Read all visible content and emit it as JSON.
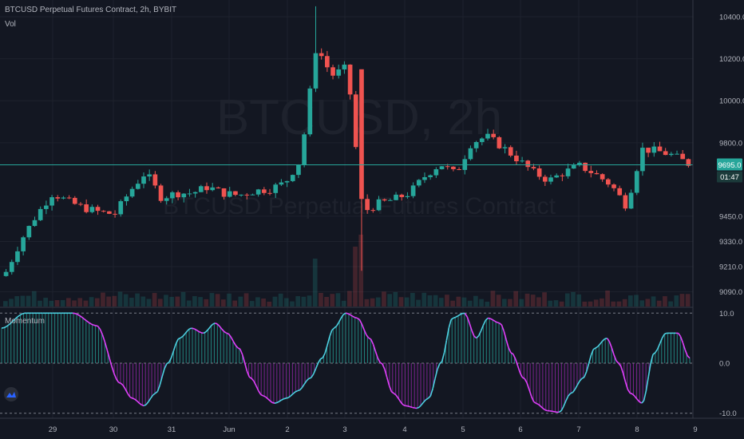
{
  "header": {
    "title": "BTCUSD Perpetual Futures Contract, 2h, BYBIT",
    "vol_label": "Vol",
    "momentum_label": "Momentum"
  },
  "watermark": {
    "symbol": "BTCUSD, 2h",
    "description": "BTCUSD Perpetual Futures Contract"
  },
  "price_axis": {
    "ticks": [
      "10400.0",
      "10200.0",
      "10000.0",
      "9800.0",
      "9695.0",
      "9450.0",
      "9330.0",
      "9210.0",
      "9090.0"
    ],
    "last_price": "9695.0",
    "countdown": "01:47"
  },
  "momentum_axis": {
    "ticks": [
      "10.0",
      "0.0",
      "-10.0"
    ]
  },
  "time_axis": {
    "labels": [
      "29",
      "30",
      "31",
      "Jun",
      "2",
      "3",
      "4",
      "5",
      "6",
      "7",
      "8",
      "9"
    ]
  },
  "colors": {
    "background": "#131722",
    "up": "#26a69a",
    "down": "#ef5350",
    "momentum_up": "#4dd0e1",
    "momentum_down": "#e040fb",
    "price_line": "#26a69a",
    "grid": "#1e222d"
  },
  "chart_data": [
    {
      "type": "candlestick",
      "title": "BTCUSD Perpetual Futures Contract, 2h, BYBIT",
      "x": [
        "29",
        "30",
        "31",
        "Jun",
        "2",
        "3",
        "4",
        "5",
        "6",
        "7",
        "8",
        "9"
      ],
      "close_anchor_points": [
        [
          0,
          9185
        ],
        [
          1,
          9340
        ],
        [
          2,
          9460
        ],
        [
          3,
          9560
        ],
        [
          4,
          9520
        ],
        [
          5,
          9490
        ],
        [
          6,
          9470
        ],
        [
          7,
          9460
        ],
        [
          8,
          9570
        ],
        [
          9,
          9660
        ],
        [
          10,
          9540
        ],
        [
          11,
          9560
        ],
        [
          12,
          9560
        ],
        [
          13,
          9590
        ],
        [
          14,
          9560
        ],
        [
          15,
          9550
        ],
        [
          16,
          9570
        ],
        [
          17,
          9580
        ],
        [
          18,
          9610
        ],
        [
          19,
          9720
        ],
        [
          20,
          10260
        ],
        [
          21,
          10120
        ],
        [
          22,
          10160
        ],
        [
          23,
          9470
        ],
        [
          24,
          9510
        ],
        [
          25,
          9530
        ],
        [
          26,
          9560
        ],
        [
          27,
          9640
        ],
        [
          28,
          9700
        ],
        [
          29,
          9650
        ],
        [
          30,
          9800
        ],
        [
          31,
          9830
        ],
        [
          32,
          9780
        ],
        [
          33,
          9720
        ],
        [
          34,
          9660
        ],
        [
          35,
          9620
        ],
        [
          36,
          9660
        ],
        [
          37,
          9690
        ],
        [
          38,
          9650
        ],
        [
          39,
          9600
        ],
        [
          40,
          9500
        ],
        [
          41,
          9770
        ],
        [
          42,
          9760
        ],
        [
          43,
          9740
        ],
        [
          44,
          9700
        ]
      ],
      "ylim": [
        9020,
        10480
      ],
      "yticks": [
        10400,
        10200,
        10000,
        9800,
        9695,
        9450,
        9330,
        9210,
        9090
      ],
      "last_price": 9695.0,
      "volume_series": {
        "name": "Vol"
      }
    },
    {
      "type": "area",
      "title": "Momentum",
      "x": [
        "29",
        "30",
        "31",
        "Jun",
        "2",
        "3",
        "4",
        "5",
        "6",
        "7",
        "8",
        "9"
      ],
      "anchor_points": [
        [
          0,
          7
        ],
        [
          2,
          10
        ],
        [
          4,
          10
        ],
        [
          6,
          10
        ],
        [
          8,
          7.5
        ],
        [
          10,
          -4
        ],
        [
          11,
          -7
        ],
        [
          12,
          -8.5
        ],
        [
          13,
          -6
        ],
        [
          14,
          0
        ],
        [
          15,
          5
        ],
        [
          16,
          7
        ],
        [
          17,
          6
        ],
        [
          18,
          8
        ],
        [
          19,
          6
        ],
        [
          20,
          3
        ],
        [
          21,
          -3
        ],
        [
          22,
          -6.5
        ],
        [
          23,
          -8
        ],
        [
          24,
          -7
        ],
        [
          25,
          -5.5
        ],
        [
          26,
          -3
        ],
        [
          27,
          1
        ],
        [
          28,
          7
        ],
        [
          29,
          10
        ],
        [
          30,
          9
        ],
        [
          31,
          5
        ],
        [
          32,
          0
        ],
        [
          33,
          -6
        ],
        [
          34,
          -8.5
        ],
        [
          35,
          -9
        ],
        [
          36,
          -7
        ],
        [
          37,
          0
        ],
        [
          38,
          9
        ],
        [
          39,
          10
        ],
        [
          40,
          5
        ],
        [
          41,
          9
        ],
        [
          42,
          8
        ],
        [
          43,
          2
        ],
        [
          44,
          -3
        ],
        [
          45,
          -8
        ],
        [
          46,
          -9.5
        ],
        [
          47,
          -9.8
        ],
        [
          48,
          -6
        ],
        [
          49,
          -3
        ],
        [
          50,
          3
        ],
        [
          51,
          5
        ],
        [
          52,
          0
        ],
        [
          53,
          -6
        ],
        [
          54,
          -8
        ],
        [
          55,
          2
        ],
        [
          56,
          6
        ],
        [
          57,
          6
        ],
        [
          58,
          1
        ]
      ],
      "ylim": [
        -11,
        11
      ],
      "yticks": [
        10,
        0,
        -10
      ],
      "series": [
        {
          "name": "Momentum"
        }
      ]
    }
  ]
}
